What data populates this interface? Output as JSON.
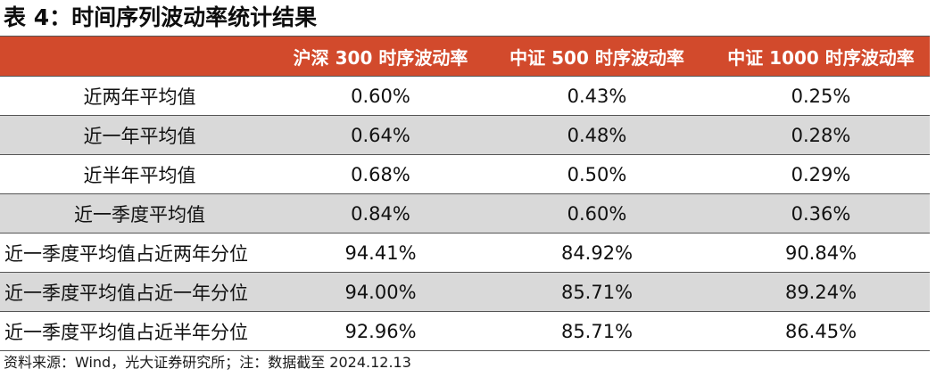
{
  "title": "表 4：时间序列波动率统计结果",
  "colors": {
    "header_bg": "#d24a2c",
    "header_text": "#ffffff",
    "shaded_row_bg": "#d9d9d9",
    "rule_color": "#555555"
  },
  "table": {
    "headers": [
      "",
      "沪深 300 时序波动率",
      "中证 500 时序波动率",
      "中证 1000 时序波动率"
    ],
    "rows": [
      {
        "label": "近两年平均值",
        "values": [
          "0.60%",
          "0.43%",
          "0.25%"
        ]
      },
      {
        "label": "近一年平均值",
        "values": [
          "0.64%",
          "0.48%",
          "0.28%"
        ]
      },
      {
        "label": "近半年平均值",
        "values": [
          "0.68%",
          "0.50%",
          "0.29%"
        ]
      },
      {
        "label": "近一季度平均值",
        "values": [
          "0.84%",
          "0.60%",
          "0.36%"
        ]
      },
      {
        "label": "近一季度平均值占近两年分位",
        "values": [
          "94.41%",
          "84.92%",
          "90.84%"
        ]
      },
      {
        "label": "近一季度平均值占近一年分位",
        "values": [
          "94.00%",
          "85.71%",
          "89.24%"
        ]
      },
      {
        "label": "近一季度平均值占近半年分位",
        "values": [
          "92.96%",
          "85.71%",
          "86.45%"
        ]
      }
    ]
  },
  "source": "资料来源：Wind，光大证券研究所；注：数据截至 2024.12.13"
}
